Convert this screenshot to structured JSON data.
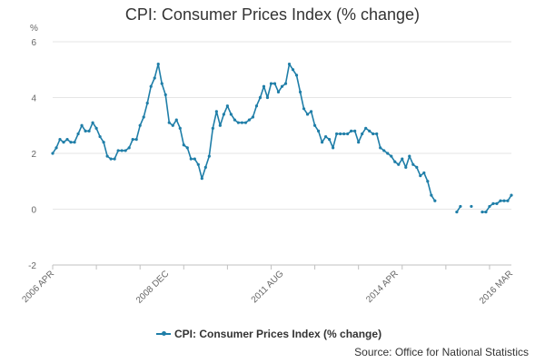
{
  "title": "CPI: Consumer Prices Index (% change)",
  "source": "Source: Office for National Statistics",
  "chart_data": {
    "type": "line",
    "title": "CPI: Consumer Prices Index (% change)",
    "ylabel": "%",
    "xlabel": "",
    "ylim": [
      -2,
      6
    ],
    "yticks": [
      -2,
      0,
      2,
      4,
      6
    ],
    "grid": true,
    "legend_position": "bottom",
    "x_tick_labels": [
      "2006 APR",
      "2008 DEC",
      "2011 AUG",
      "2014 APR",
      "2016 MAR"
    ],
    "x_start": "2006-04",
    "series": [
      {
        "name": "CPI: Consumer Prices Index (% change)",
        "color": "#1f7ea8",
        "values": [
          2.0,
          2.2,
          2.5,
          2.4,
          2.5,
          2.4,
          2.4,
          2.7,
          3.0,
          2.8,
          2.8,
          3.1,
          2.9,
          2.6,
          2.4,
          1.9,
          1.8,
          1.8,
          2.1,
          2.1,
          2.1,
          2.2,
          2.5,
          2.5,
          3.0,
          3.3,
          3.8,
          4.4,
          4.7,
          5.2,
          4.5,
          4.1,
          3.1,
          3.0,
          3.2,
          2.9,
          2.3,
          2.2,
          1.8,
          1.8,
          1.6,
          1.1,
          1.5,
          1.9,
          2.9,
          3.5,
          3.0,
          3.4,
          3.7,
          3.4,
          3.2,
          3.1,
          3.1,
          3.1,
          3.2,
          3.3,
          3.7,
          4.0,
          4.4,
          4.0,
          4.5,
          4.5,
          4.2,
          4.4,
          4.5,
          5.2,
          5.0,
          4.8,
          4.2,
          3.6,
          3.4,
          3.5,
          3.0,
          2.8,
          2.4,
          2.6,
          2.5,
          2.2,
          2.7,
          2.7,
          2.7,
          2.7,
          2.8,
          2.8,
          2.4,
          2.7,
          2.9,
          2.8,
          2.7,
          2.7,
          2.2,
          2.1,
          2.0,
          1.9,
          1.7,
          1.6,
          1.8,
          1.5,
          1.9,
          1.6,
          1.5,
          1.2,
          1.3,
          1.0,
          0.5,
          0.3,
          null,
          null,
          null,
          null,
          null,
          -0.1,
          0.1,
          null,
          null,
          0.1,
          null,
          null,
          -0.1,
          -0.1,
          0.1,
          0.2,
          0.2,
          0.3,
          0.3,
          0.3,
          0.5
        ]
      }
    ]
  }
}
